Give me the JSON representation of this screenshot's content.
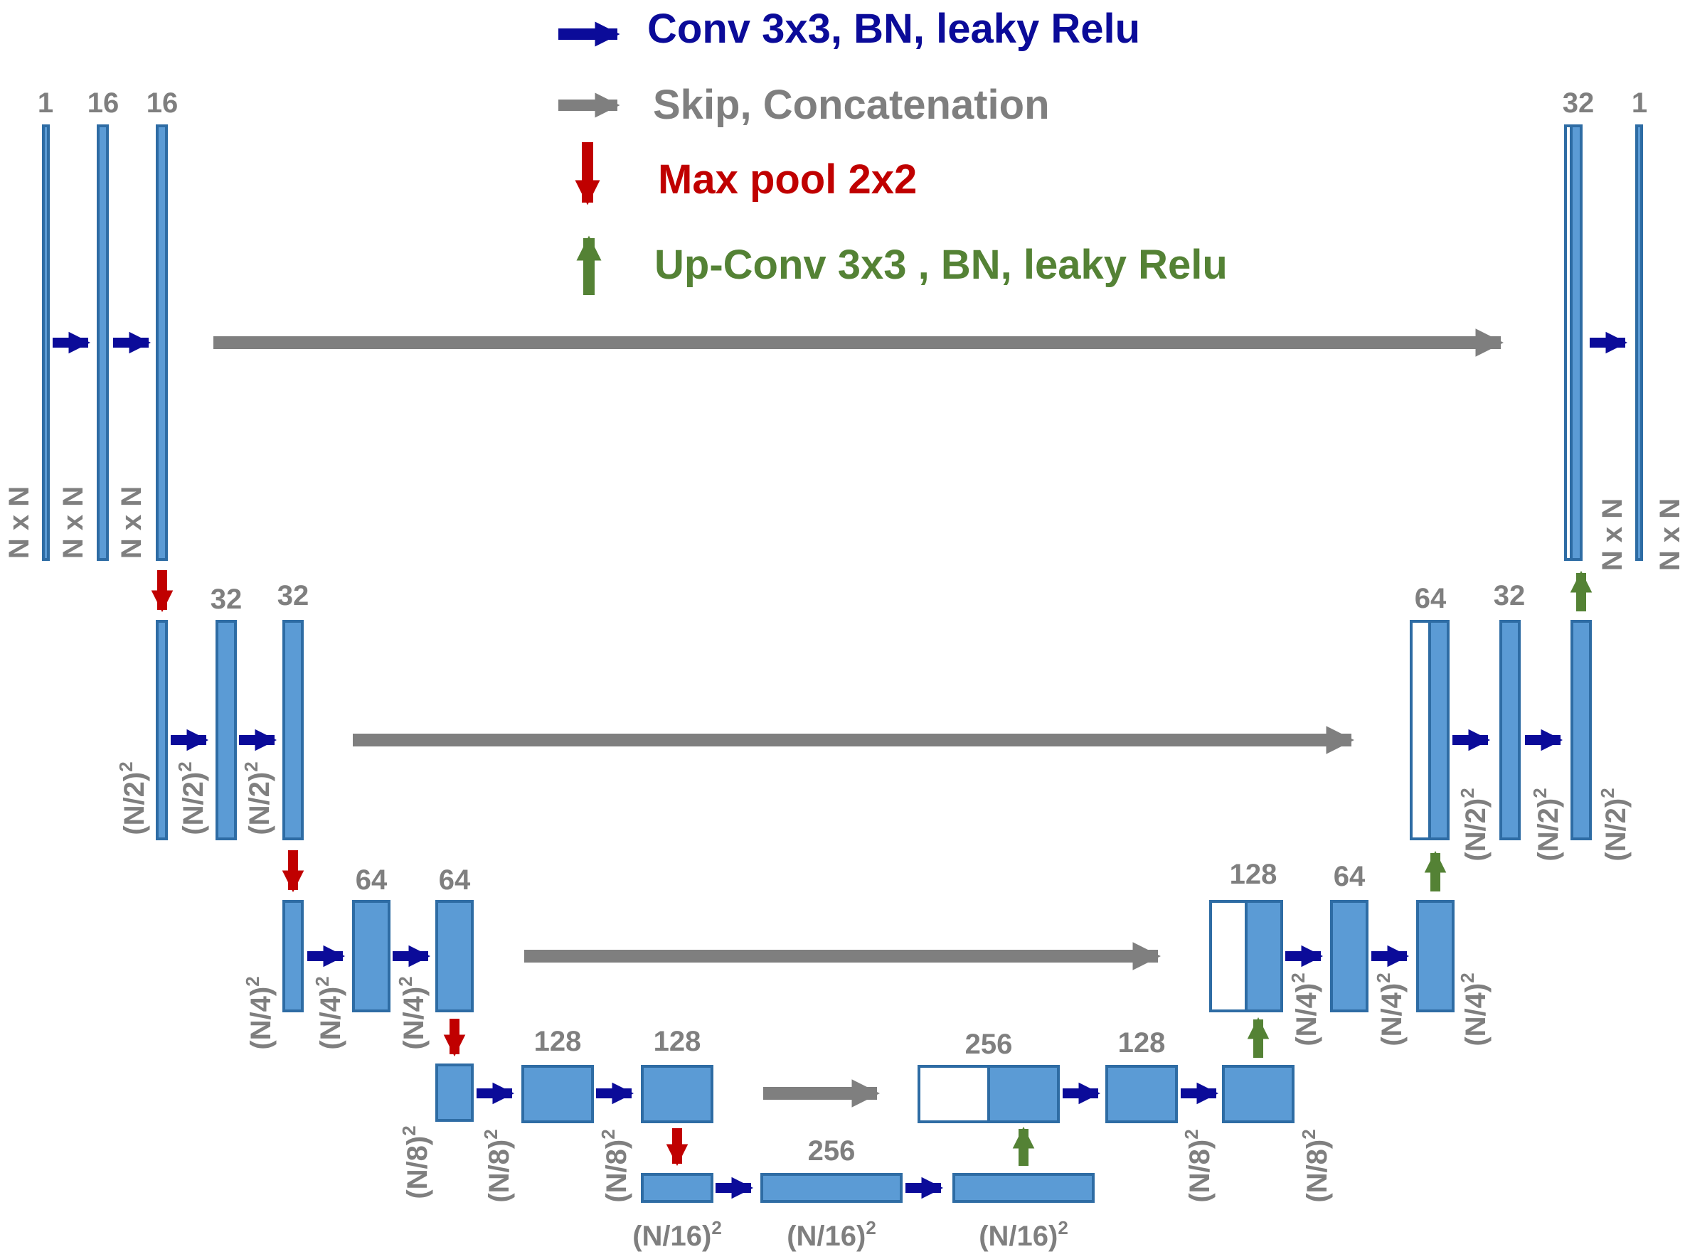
{
  "legend": [
    {
      "key": "conv",
      "text": "Conv 3x3, BN, leaky Relu",
      "color": "#0b0b99"
    },
    {
      "key": "skip",
      "text": "Skip, Concatenation",
      "color": "#7f7f7f"
    },
    {
      "key": "pool",
      "text": "Max pool 2x2",
      "color": "#c00000"
    },
    {
      "key": "upconv",
      "text": "Up-Conv 3x3 , BN, leaky Relu",
      "color": "#548235"
    }
  ],
  "colors": {
    "feature_map_fill": "#5b9bd5",
    "feature_map_border": "#2e6ca4",
    "label_gray": "#7f7f7f"
  },
  "channels": {
    "level1_encoder": [
      "1",
      "16",
      "16"
    ],
    "level1_decoder": [
      "32",
      "1"
    ],
    "level2_encoder": [
      "32",
      "32"
    ],
    "level2_decoder": [
      "64",
      "32"
    ],
    "level3_encoder": [
      "64",
      "64"
    ],
    "level3_decoder": [
      "128",
      "64"
    ],
    "level4_encoder": [
      "128",
      "128"
    ],
    "level4_decoder": [
      "256",
      "128"
    ],
    "bottleneck": [
      "256"
    ]
  },
  "sizes": {
    "level1": "N x N",
    "level2": "(N/2)",
    "level3": "(N/4)",
    "level4": "(N/8)",
    "bottleneck": "(N/16)",
    "squared": "2"
  }
}
